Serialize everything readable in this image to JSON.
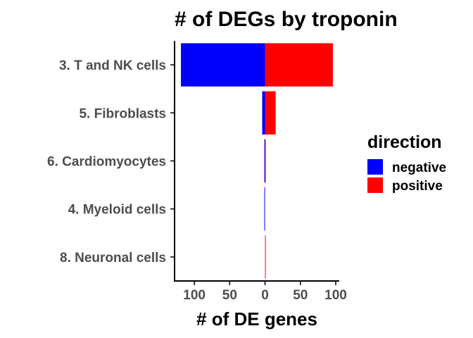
{
  "chart_data": {
    "type": "bar",
    "orientation": "horizontal",
    "stacking": "diverging",
    "title": "# of DEGs by troponin",
    "xlabel": "# of DE genes",
    "ylabel": "",
    "xlim": [
      -128,
      105
    ],
    "x_ticks": [
      -100,
      -50,
      0,
      50,
      100
    ],
    "x_tick_labels": [
      "100",
      "50",
      "0",
      "50",
      "100"
    ],
    "categories": [
      "3. T and NK cells",
      "5. Fibroblasts",
      "6. Cardiomyocytes",
      "4. Myeloid cells",
      "8. Neuronal cells"
    ],
    "series": [
      {
        "name": "negative",
        "color": "#0000ff",
        "values": [
          -119,
          -4,
          -1,
          -1,
          0
        ]
      },
      {
        "name": "positive",
        "color": "#ff0000",
        "values": [
          96,
          15,
          1,
          0,
          1
        ]
      }
    ],
    "legend": {
      "title": "direction",
      "position": "right"
    },
    "grid": false
  }
}
